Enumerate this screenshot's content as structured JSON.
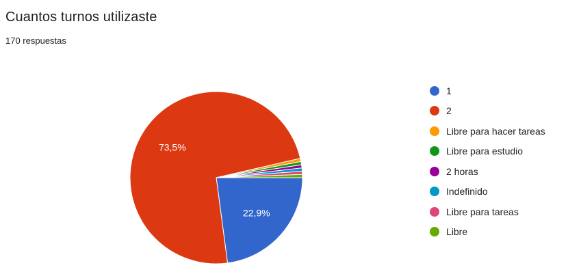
{
  "title": "Cuantos turnos utilizaste",
  "subtitle": "170 respuestas",
  "chart_data": {
    "type": "pie",
    "title": "Cuantos turnos utilizaste",
    "subtitle": "170 respuestas",
    "categories": [
      "1",
      "2",
      "Libre para hacer tareas",
      "Libre para estudio",
      "2 horas",
      "Indefinido",
      "Libre para tareas",
      "Libre"
    ],
    "values": [
      22.9,
      73.5,
      0.6,
      0.6,
      0.6,
      0.6,
      0.6,
      0.6
    ],
    "colors": [
      "#3366cc",
      "#dc3912",
      "#ff9900",
      "#109618",
      "#990099",
      "#0099c6",
      "#dd4477",
      "#66aa00"
    ],
    "data_labels": [
      "22,9%",
      "73,5%",
      "",
      "",
      "",
      "",
      "",
      ""
    ],
    "legend_position": "right"
  }
}
